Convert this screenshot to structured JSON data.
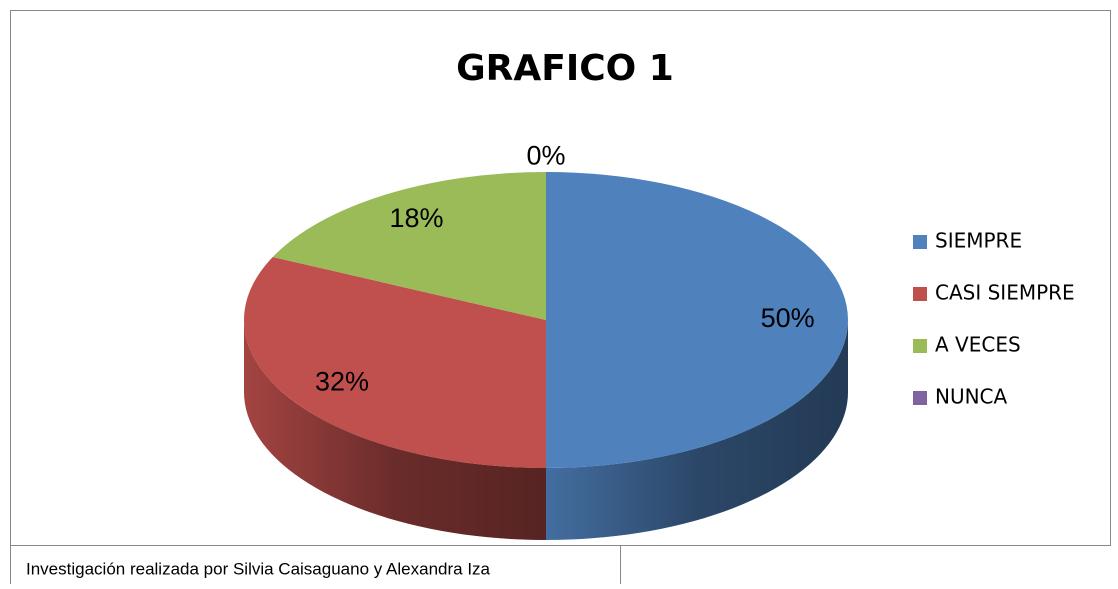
{
  "chart_data": {
    "type": "pie",
    "title": "GRAFICO 1",
    "categories": [
      "SIEMPRE",
      "CASI SIEMPRE",
      "A VECES",
      "NUNCA"
    ],
    "values": [
      50,
      32,
      18,
      0
    ],
    "value_labels": [
      "50%",
      "32%",
      "18%",
      "0%"
    ],
    "colors": [
      "#4f81bd",
      "#c0504d",
      "#9bbb59",
      "#8064a2"
    ],
    "legend": "right",
    "note": "Investigación realizada por Silvia Caisaguano y Alexandra Iza"
  }
}
